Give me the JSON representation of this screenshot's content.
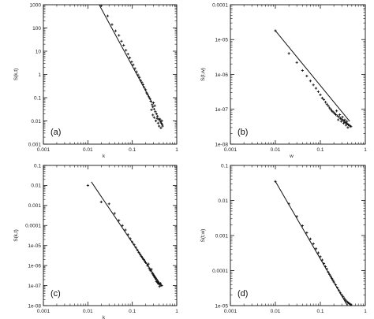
{
  "chart_data": [
    {
      "type": "scatter",
      "panel_label": "(a)",
      "xlabel": "k",
      "ylabel": "S(k,t)",
      "xscale": "log",
      "yscale": "log",
      "xlim": [
        0.001,
        1
      ],
      "ylim": [
        0.001,
        1000
      ],
      "xticks": [
        "0.001",
        "0.01",
        "0.1",
        "1"
      ],
      "yticks": [
        "0.001",
        "0.01",
        "0.1",
        "1",
        "10",
        "100",
        "1000"
      ],
      "fit_line": {
        "x": [
          0.018,
          0.28
        ],
        "y": [
          1000,
          0.06
        ]
      },
      "points": [
        [
          0.02,
          900
        ],
        [
          0.028,
          330
        ],
        [
          0.035,
          140
        ],
        [
          0.042,
          75
        ],
        [
          0.05,
          48
        ],
        [
          0.057,
          27
        ],
        [
          0.064,
          18
        ],
        [
          0.072,
          11
        ],
        [
          0.08,
          7.5
        ],
        [
          0.088,
          5.2
        ],
        [
          0.097,
          3.5
        ],
        [
          0.105,
          2.6
        ],
        [
          0.115,
          1.8
        ],
        [
          0.125,
          1.3
        ],
        [
          0.135,
          0.95
        ],
        [
          0.145,
          0.75
        ],
        [
          0.155,
          0.55
        ],
        [
          0.165,
          0.45
        ],
        [
          0.175,
          0.36
        ],
        [
          0.185,
          0.28
        ],
        [
          0.2,
          0.22
        ],
        [
          0.21,
          0.16
        ],
        [
          0.22,
          0.14
        ],
        [
          0.235,
          0.11
        ],
        [
          0.25,
          0.09
        ],
        [
          0.26,
          0.07
        ],
        [
          0.28,
          0.05
        ],
        [
          0.29,
          0.04
        ],
        [
          0.31,
          0.032
        ],
        [
          0.33,
          0.025
        ],
        [
          0.35,
          0.02
        ],
        [
          0.37,
          0.016
        ],
        [
          0.39,
          0.012
        ],
        [
          0.41,
          0.011
        ],
        [
          0.43,
          0.009
        ],
        [
          0.45,
          0.008
        ],
        [
          0.47,
          0.007
        ],
        [
          0.3,
          0.06
        ],
        [
          0.32,
          0.045
        ],
        [
          0.34,
          0.01
        ],
        [
          0.36,
          0.013
        ],
        [
          0.38,
          0.008
        ],
        [
          0.4,
          0.006
        ],
        [
          0.42,
          0.012
        ],
        [
          0.44,
          0.005
        ],
        [
          0.46,
          0.01
        ],
        [
          0.48,
          0.006
        ],
        [
          0.27,
          0.03
        ],
        [
          0.29,
          0.018
        ],
        [
          0.31,
          0.014
        ]
      ]
    },
    {
      "type": "scatter",
      "panel_label": "(b)",
      "xlabel": "w",
      "ylabel": "S(t,w)",
      "xscale": "log",
      "yscale": "log",
      "xlim": [
        0.001,
        1
      ],
      "ylim": [
        1e-08,
        0.0001
      ],
      "xticks": [
        "0.001",
        "0.01",
        "0.1",
        "1"
      ],
      "yticks": [
        "1e-08",
        "1e-07",
        "1e-06",
        "1e-05",
        "0.0001"
      ],
      "fit_line": {
        "x": [
          0.01,
          0.45
        ],
        "y": [
          1.8e-05,
          4.5e-08
        ]
      },
      "points": [
        [
          0.01,
          1.8e-05
        ],
        [
          0.02,
          4e-06
        ],
        [
          0.03,
          2.2e-06
        ],
        [
          0.04,
          1.3e-06
        ],
        [
          0.05,
          9e-07
        ],
        [
          0.06,
          6.5e-07
        ],
        [
          0.07,
          5e-07
        ],
        [
          0.08,
          4e-07
        ],
        [
          0.09,
          3.2e-07
        ],
        [
          0.1,
          2.6e-07
        ],
        [
          0.11,
          2.1e-07
        ],
        [
          0.12,
          1.9e-07
        ],
        [
          0.13,
          1.6e-07
        ],
        [
          0.14,
          1.4e-07
        ],
        [
          0.15,
          1.25e-07
        ],
        [
          0.16,
          1.1e-07
        ],
        [
          0.17,
          1e-07
        ],
        [
          0.18,
          9e-08
        ],
        [
          0.19,
          8.5e-08
        ],
        [
          0.2,
          8e-08
        ],
        [
          0.21,
          7.5e-08
        ],
        [
          0.22,
          7e-08
        ],
        [
          0.24,
          6.5e-08
        ],
        [
          0.26,
          6e-08
        ],
        [
          0.28,
          5.5e-08
        ],
        [
          0.3,
          5.2e-08
        ],
        [
          0.32,
          4.8e-08
        ],
        [
          0.34,
          4.5e-08
        ],
        [
          0.36,
          4.2e-08
        ],
        [
          0.38,
          4e-08
        ],
        [
          0.4,
          3.8e-08
        ],
        [
          0.42,
          3.6e-08
        ],
        [
          0.44,
          3.5e-08
        ],
        [
          0.46,
          3.3e-08
        ],
        [
          0.48,
          3.2e-08
        ],
        [
          0.23,
          9e-08
        ],
        [
          0.25,
          5e-08
        ],
        [
          0.27,
          7e-08
        ],
        [
          0.29,
          4.5e-08
        ],
        [
          0.31,
          6e-08
        ],
        [
          0.33,
          4e-08
        ],
        [
          0.35,
          5e-08
        ],
        [
          0.37,
          3.5e-08
        ],
        [
          0.39,
          4.5e-08
        ],
        [
          0.41,
          3e-08
        ]
      ]
    },
    {
      "type": "scatter",
      "panel_label": "(c)",
      "xlabel": "k",
      "ylabel": "S(k,t)",
      "xscale": "log",
      "yscale": "log",
      "xlim": [
        0.001,
        1
      ],
      "ylim": [
        1e-08,
        0.1
      ],
      "xticks": [
        "0.001",
        "0.01",
        "0.1",
        "1"
      ],
      "yticks": [
        "1e-08",
        "1e-07",
        "1e-06",
        "1e-05",
        "0.0001",
        "0.001",
        "0.01",
        "0.1"
      ],
      "fit_line": {
        "x": [
          0.012,
          0.45
        ],
        "y": [
          0.015,
          1e-07
        ]
      },
      "points": [
        [
          0.01,
          0.01
        ],
        [
          0.02,
          0.0015
        ],
        [
          0.03,
          0.0012
        ],
        [
          0.04,
          0.0004
        ],
        [
          0.05,
          0.00018
        ],
        [
          0.06,
          0.0001
        ],
        [
          0.07,
          6e-05
        ],
        [
          0.08,
          3.5e-05
        ],
        [
          0.09,
          2.2e-05
        ],
        [
          0.1,
          1.5e-05
        ],
        [
          0.11,
          1.1e-05
        ],
        [
          0.12,
          8e-06
        ],
        [
          0.13,
          6e-06
        ],
        [
          0.14,
          4.5e-06
        ],
        [
          0.15,
          3.6e-06
        ],
        [
          0.16,
          2.9e-06
        ],
        [
          0.17,
          2.4e-06
        ],
        [
          0.18,
          2e-06
        ],
        [
          0.19,
          1.7e-06
        ],
        [
          0.2,
          1.4e-06
        ],
        [
          0.22,
          1e-06
        ],
        [
          0.24,
          7.5e-07
        ],
        [
          0.26,
          5.5e-07
        ],
        [
          0.28,
          4.2e-07
        ],
        [
          0.3,
          3.3e-07
        ],
        [
          0.32,
          2.6e-07
        ],
        [
          0.34,
          2.1e-07
        ],
        [
          0.36,
          1.8e-07
        ],
        [
          0.38,
          1.5e-07
        ],
        [
          0.4,
          1.3e-07
        ],
        [
          0.42,
          1.15e-07
        ],
        [
          0.44,
          1.05e-07
        ],
        [
          0.46,
          1e-07
        ],
        [
          0.23,
          1.2e-06
        ],
        [
          0.25,
          6e-07
        ],
        [
          0.27,
          6.5e-07
        ],
        [
          0.29,
          3.8e-07
        ],
        [
          0.31,
          2.9e-07
        ],
        [
          0.33,
          2.4e-07
        ],
        [
          0.35,
          1.6e-07
        ],
        [
          0.37,
          1.4e-07
        ],
        [
          0.39,
          1.2e-07
        ],
        [
          0.41,
          9e-08
        ],
        [
          0.43,
          1.3e-07
        ]
      ]
    },
    {
      "type": "scatter",
      "panel_label": "(d)",
      "xlabel": "",
      "ylabel": "S(t,w)",
      "xscale": "log",
      "yscale": "log",
      "xlim": [
        0.001,
        1
      ],
      "ylim": [
        1e-05,
        0.1
      ],
      "xticks": [
        "0.001",
        "0.01",
        "0.1",
        "1"
      ],
      "yticks": [
        "1e-05",
        "0.0001",
        "0.001",
        "0.01",
        "0.1"
      ],
      "fit_line": {
        "x": [
          0.01,
          0.4
        ],
        "y": [
          0.035,
          1e-05
        ]
      },
      "points": [
        [
          0.01,
          0.035
        ],
        [
          0.02,
          0.008
        ],
        [
          0.03,
          0.0035
        ],
        [
          0.04,
          0.0019
        ],
        [
          0.05,
          0.0012
        ],
        [
          0.06,
          0.0008
        ],
        [
          0.07,
          0.00058
        ],
        [
          0.08,
          0.00042
        ],
        [
          0.09,
          0.00032
        ],
        [
          0.1,
          0.00025
        ],
        [
          0.11,
          0.0002
        ],
        [
          0.12,
          0.00016
        ],
        [
          0.13,
          0.00013
        ],
        [
          0.14,
          0.00011
        ],
        [
          0.15,
          9e-05
        ],
        [
          0.16,
          7.8e-05
        ],
        [
          0.17,
          6.8e-05
        ],
        [
          0.18,
          6e-05
        ],
        [
          0.19,
          5.3e-05
        ],
        [
          0.2,
          4.7e-05
        ],
        [
          0.22,
          3.9e-05
        ],
        [
          0.24,
          3.2e-05
        ],
        [
          0.26,
          2.7e-05
        ],
        [
          0.28,
          2.3e-05
        ],
        [
          0.3,
          2e-05
        ],
        [
          0.32,
          1.8e-05
        ],
        [
          0.34,
          1.6e-05
        ],
        [
          0.36,
          1.45e-05
        ],
        [
          0.38,
          1.35e-05
        ],
        [
          0.4,
          1.25e-05
        ],
        [
          0.42,
          1.2e-05
        ],
        [
          0.44,
          1.15e-05
        ],
        [
          0.46,
          1.1e-05
        ],
        [
          0.48,
          1.05e-05
        ]
      ]
    }
  ]
}
